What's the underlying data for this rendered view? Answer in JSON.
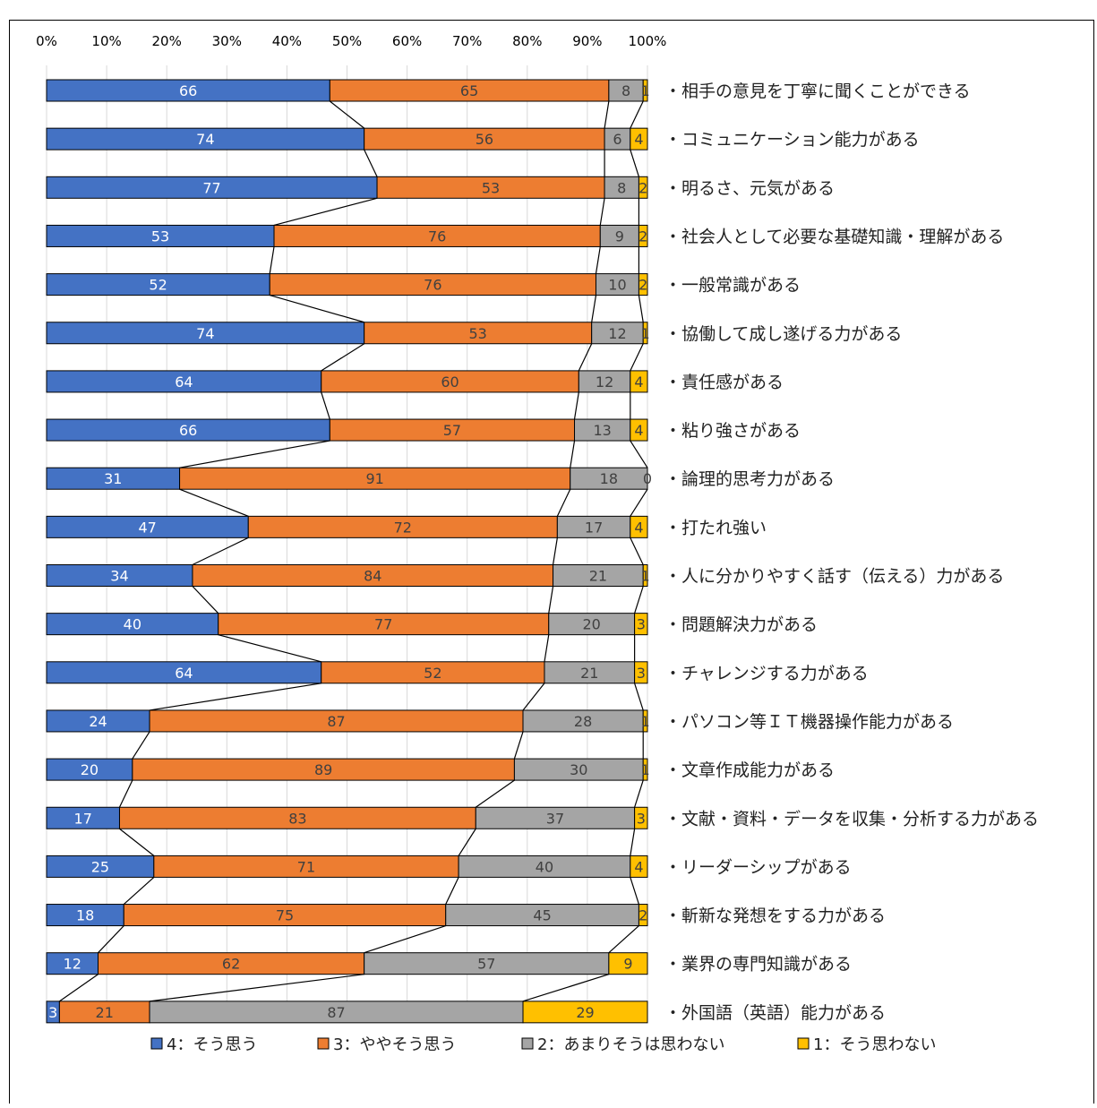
{
  "chart_data": {
    "type": "bar",
    "orientation": "horizontal",
    "stacked": "percent",
    "xlim": [
      0,
      100
    ],
    "xticks": [
      "0%",
      "10%",
      "20%",
      "30%",
      "40%",
      "50%",
      "60%",
      "70%",
      "80%",
      "90%",
      "100%"
    ],
    "grid": true,
    "legend_position": "bottom",
    "categories": [
      "・相手の意見を丁寧に聞くことができる",
      "・コミュニケーション能力がある",
      "・明るさ、元気がある",
      "・社会人として必要な基礎知識・理解がある",
      "・一般常識がある",
      "・協働して成し遂げる力がある",
      "・責任感がある",
      "・粘り強さがある",
      "・論理的思考力がある",
      "・打たれ強い",
      "・人に分かりやすく話す（伝える）力がある",
      "・問題解決力がある",
      "・チャレンジする力がある",
      "・パソコン等ＩＴ機器操作能力がある",
      "・文章作成能力がある",
      "・文献・資料・データを収集・分析する力がある",
      "・リーダーシップがある",
      "・斬新な発想をする力がある",
      "・業界の専門知識がある",
      "・外国語（英語）能力がある"
    ],
    "series": [
      {
        "name": "4：そう思う",
        "color": "#4472C4",
        "label_color": "#ffffff",
        "values": [
          66,
          74,
          77,
          53,
          52,
          74,
          64,
          66,
          31,
          47,
          34,
          40,
          64,
          24,
          20,
          17,
          25,
          18,
          12,
          3
        ]
      },
      {
        "name": "3：ややそう思う",
        "color": "#ED7D31",
        "label_color": "#404040",
        "values": [
          65,
          56,
          53,
          76,
          76,
          53,
          60,
          57,
          91,
          72,
          84,
          77,
          52,
          87,
          89,
          83,
          71,
          75,
          62,
          21
        ]
      },
      {
        "name": "2：あまりそうは思わない",
        "color": "#A5A5A5",
        "label_color": "#404040",
        "values": [
          8,
          6,
          8,
          9,
          10,
          12,
          12,
          13,
          18,
          17,
          21,
          20,
          21,
          28,
          30,
          37,
          40,
          45,
          57,
          87
        ]
      },
      {
        "name": "1：そう思わない",
        "color": "#FFC000",
        "label_color": "#404040",
        "values": [
          1,
          4,
          2,
          2,
          2,
          1,
          4,
          4,
          0,
          4,
          1,
          3,
          3,
          1,
          1,
          3,
          4,
          2,
          9,
          29
        ]
      }
    ]
  }
}
